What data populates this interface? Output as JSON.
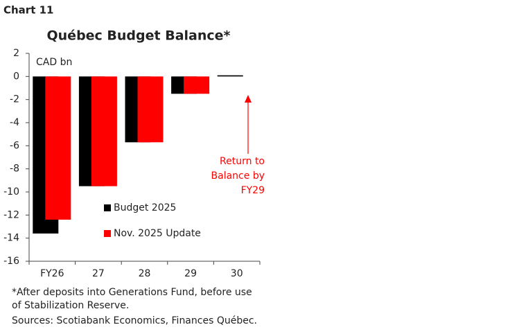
{
  "label": "Chart 11",
  "chart_data": {
    "type": "bar",
    "title": "Québec Budget Balance*",
    "y_label": "CAD bn",
    "categories": [
      "FY26",
      "27",
      "28",
      "29",
      "30"
    ],
    "series": [
      {
        "name": "Budget 2025",
        "color": "#000000",
        "values": [
          -13.6,
          -9.5,
          -5.7,
          -1.5,
          0.1
        ]
      },
      {
        "name": "Nov. 2025 Update",
        "color": "#ff0000",
        "values": [
          -12.4,
          -9.5,
          -5.7,
          -1.5,
          0
        ]
      }
    ],
    "ylim": [
      -16,
      2
    ],
    "yticks": [
      2,
      0,
      -2,
      -4,
      -6,
      -8,
      -10,
      -12,
      -14,
      -16
    ],
    "annotation": [
      "Return to",
      "Balance by",
      "FY29"
    ],
    "notes": [
      "*After deposits into Generations Fund, before use",
      "of Stabilization Reserve.",
      "Sources: Scotiabank Economics, Finances Québec."
    ]
  }
}
